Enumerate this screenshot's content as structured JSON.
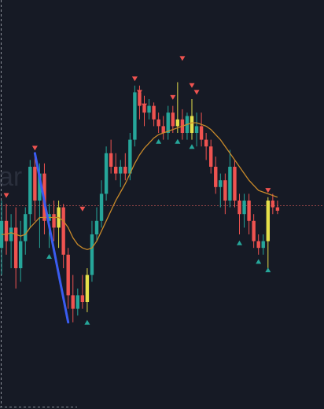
{
  "chart_data": {
    "type": "candlestick",
    "title": "",
    "xlabel": "",
    "ylabel": "",
    "watermark_text": "ar",
    "colors": {
      "background": "#161a25",
      "up": "#26a69a",
      "down": "#ef5350",
      "highlight": "#e6e04a",
      "moving_average": "#c98a2a",
      "trend_line": "#3a5cf0",
      "reference_line": "#a04a4a",
      "sell_marker": "#ef5350",
      "buy_marker": "#26a69a",
      "border": "#8a8f98"
    },
    "y_range": [
      0,
      100
    ],
    "x_range": [
      0,
      70
    ],
    "reference_level": 48.5,
    "candles": [
      {
        "i": 0,
        "o": 36,
        "h": 50,
        "l": 28,
        "c": 44,
        "color": "up"
      },
      {
        "i": 1,
        "o": 44,
        "h": 49,
        "l": 34,
        "c": 38,
        "color": "down"
      },
      {
        "i": 2,
        "o": 38,
        "h": 46,
        "l": 30,
        "c": 42,
        "color": "up"
      },
      {
        "i": 3,
        "o": 42,
        "h": 48,
        "l": 24,
        "c": 30,
        "color": "down"
      },
      {
        "i": 4,
        "o": 30,
        "h": 44,
        "l": 26,
        "c": 38,
        "color": "up"
      },
      {
        "i": 5,
        "o": 38,
        "h": 48,
        "l": 34,
        "c": 46,
        "color": "up"
      },
      {
        "i": 6,
        "o": 46,
        "h": 62,
        "l": 42,
        "c": 60,
        "color": "up"
      },
      {
        "i": 7,
        "o": 60,
        "h": 64,
        "l": 44,
        "c": 50,
        "color": "down"
      },
      {
        "i": 8,
        "o": 50,
        "h": 61,
        "l": 36,
        "c": 58,
        "color": "up"
      },
      {
        "i": 9,
        "o": 58,
        "h": 61,
        "l": 40,
        "c": 44,
        "color": "down"
      },
      {
        "i": 10,
        "o": 44,
        "h": 49,
        "l": 36,
        "c": 46,
        "color": "up"
      },
      {
        "i": 11,
        "o": 46,
        "h": 50,
        "l": 38,
        "c": 42,
        "color": "down"
      },
      {
        "i": 12,
        "o": 42,
        "h": 50,
        "l": 36,
        "c": 48,
        "color": "highlight"
      },
      {
        "i": 13,
        "o": 48,
        "h": 49,
        "l": 30,
        "c": 34,
        "color": "down"
      },
      {
        "i": 14,
        "o": 34,
        "h": 36,
        "l": 18,
        "c": 22,
        "color": "down"
      },
      {
        "i": 15,
        "o": 22,
        "h": 28,
        "l": 14,
        "c": 18,
        "color": "down"
      },
      {
        "i": 16,
        "o": 18,
        "h": 24,
        "l": 16,
        "c": 22,
        "color": "up"
      },
      {
        "i": 17,
        "o": 22,
        "h": 28,
        "l": 18,
        "c": 20,
        "color": "down"
      },
      {
        "i": 18,
        "o": 20,
        "h": 30,
        "l": 17,
        "c": 28,
        "color": "highlight"
      },
      {
        "i": 19,
        "o": 28,
        "h": 44,
        "l": 26,
        "c": 40,
        "color": "up"
      },
      {
        "i": 20,
        "o": 40,
        "h": 48,
        "l": 38,
        "c": 44,
        "color": "up"
      },
      {
        "i": 21,
        "o": 44,
        "h": 56,
        "l": 42,
        "c": 52,
        "color": "up"
      },
      {
        "i": 22,
        "o": 52,
        "h": 66,
        "l": 50,
        "c": 64,
        "color": "up"
      },
      {
        "i": 23,
        "o": 64,
        "h": 68,
        "l": 58,
        "c": 60,
        "color": "down"
      },
      {
        "i": 24,
        "o": 60,
        "h": 64,
        "l": 56,
        "c": 58,
        "color": "down"
      },
      {
        "i": 25,
        "o": 58,
        "h": 62,
        "l": 54,
        "c": 60,
        "color": "up"
      },
      {
        "i": 26,
        "o": 60,
        "h": 64,
        "l": 56,
        "c": 58,
        "color": "down"
      },
      {
        "i": 27,
        "o": 58,
        "h": 70,
        "l": 56,
        "c": 68,
        "color": "up"
      },
      {
        "i": 28,
        "o": 68,
        "h": 84,
        "l": 66,
        "c": 82,
        "color": "up"
      },
      {
        "i": 29,
        "o": 82,
        "h": 84,
        "l": 74,
        "c": 78,
        "color": "down"
      },
      {
        "i": 30,
        "o": 78,
        "h": 81,
        "l": 72,
        "c": 76,
        "color": "down"
      },
      {
        "i": 31,
        "o": 76,
        "h": 80,
        "l": 74,
        "c": 78,
        "color": "up"
      },
      {
        "i": 32,
        "o": 78,
        "h": 79,
        "l": 72,
        "c": 74,
        "color": "down"
      },
      {
        "i": 33,
        "o": 74,
        "h": 76,
        "l": 70,
        "c": 72,
        "color": "down"
      },
      {
        "i": 34,
        "o": 72,
        "h": 75,
        "l": 68,
        "c": 70,
        "color": "down"
      },
      {
        "i": 35,
        "o": 70,
        "h": 78,
        "l": 68,
        "c": 76,
        "color": "up"
      },
      {
        "i": 36,
        "o": 76,
        "h": 78,
        "l": 70,
        "c": 72,
        "color": "down"
      },
      {
        "i": 37,
        "o": 72,
        "h": 85,
        "l": 70,
        "c": 74,
        "color": "highlight"
      },
      {
        "i": 38,
        "o": 74,
        "h": 77,
        "l": 68,
        "c": 70,
        "color": "down"
      },
      {
        "i": 39,
        "o": 70,
        "h": 76,
        "l": 68,
        "c": 75,
        "color": "up"
      },
      {
        "i": 40,
        "o": 75,
        "h": 80,
        "l": 68,
        "c": 70,
        "color": "highlight"
      },
      {
        "i": 41,
        "o": 70,
        "h": 76,
        "l": 66,
        "c": 72,
        "color": "up"
      },
      {
        "i": 42,
        "o": 72,
        "h": 76,
        "l": 66,
        "c": 68,
        "color": "down"
      },
      {
        "i": 43,
        "o": 68,
        "h": 70,
        "l": 62,
        "c": 66,
        "color": "down"
      },
      {
        "i": 44,
        "o": 66,
        "h": 68,
        "l": 58,
        "c": 60,
        "color": "down"
      },
      {
        "i": 45,
        "o": 60,
        "h": 63,
        "l": 52,
        "c": 54,
        "color": "down"
      },
      {
        "i": 46,
        "o": 54,
        "h": 58,
        "l": 48,
        "c": 56,
        "color": "up"
      },
      {
        "i": 47,
        "o": 56,
        "h": 58,
        "l": 46,
        "c": 50,
        "color": "down"
      },
      {
        "i": 48,
        "o": 50,
        "h": 65,
        "l": 48,
        "c": 60,
        "color": "up"
      },
      {
        "i": 49,
        "o": 60,
        "h": 62,
        "l": 48,
        "c": 50,
        "color": "down"
      },
      {
        "i": 50,
        "o": 50,
        "h": 52,
        "l": 40,
        "c": 46,
        "color": "down"
      },
      {
        "i": 51,
        "o": 46,
        "h": 52,
        "l": 42,
        "c": 50,
        "color": "up"
      },
      {
        "i": 52,
        "o": 50,
        "h": 52,
        "l": 40,
        "c": 44,
        "color": "down"
      },
      {
        "i": 53,
        "o": 44,
        "h": 46,
        "l": 36,
        "c": 38,
        "color": "down"
      },
      {
        "i": 54,
        "o": 38,
        "h": 40,
        "l": 34,
        "c": 36,
        "color": "down"
      },
      {
        "i": 55,
        "o": 36,
        "h": 40,
        "l": 34,
        "c": 38,
        "color": "up"
      },
      {
        "i": 56,
        "o": 38,
        "h": 51,
        "l": 30,
        "c": 50,
        "color": "highlight"
      },
      {
        "i": 57,
        "o": 50,
        "h": 52,
        "l": 46,
        "c": 48,
        "color": "down"
      },
      {
        "i": 58,
        "o": 48,
        "h": 50,
        "l": 46,
        "c": 47,
        "color": "down"
      }
    ],
    "moving_average": [
      40,
      40,
      40.5,
      40,
      39.5,
      40,
      42,
      43.5,
      45,
      45,
      45,
      45,
      45,
      44,
      42,
      39,
      37,
      36,
      35.5,
      36,
      38,
      41,
      44,
      47,
      50,
      52.5,
      55,
      58,
      61,
      63.5,
      65.5,
      67,
      68.5,
      69.5,
      70,
      70.5,
      71,
      71.5,
      72,
      72.5,
      73,
      73,
      72.5,
      72,
      71,
      69.5,
      68,
      66,
      64,
      62,
      60,
      58,
      56,
      54.5,
      53,
      52.5,
      52,
      51.5,
      51
    ],
    "sell_signals": [
      {
        "i": 1,
        "y": 51.5
      },
      {
        "i": 7,
        "y": 65.5
      },
      {
        "i": 17,
        "y": 47.5
      },
      {
        "i": 28,
        "y": 86
      },
      {
        "i": 29,
        "y": 82
      },
      {
        "i": 30,
        "y": 78
      },
      {
        "i": 36,
        "y": 80.5
      },
      {
        "i": 38,
        "y": 92
      },
      {
        "i": 40,
        "y": 84
      },
      {
        "i": 41,
        "y": 82
      },
      {
        "i": 56,
        "y": 53
      }
    ],
    "buy_signals": [
      {
        "i": 10,
        "y": 33.5
      },
      {
        "i": 18,
        "y": 14
      },
      {
        "i": 33,
        "y": 67.5
      },
      {
        "i": 37,
        "y": 67.5
      },
      {
        "i": 40,
        "y": 66
      },
      {
        "i": 50,
        "y": 37.5
      },
      {
        "i": 54,
        "y": 32
      },
      {
        "i": 56,
        "y": 29.5
      }
    ],
    "trend_line": [
      {
        "i": 7,
        "y": 64
      },
      {
        "i": 14,
        "y": 14
      }
    ]
  }
}
